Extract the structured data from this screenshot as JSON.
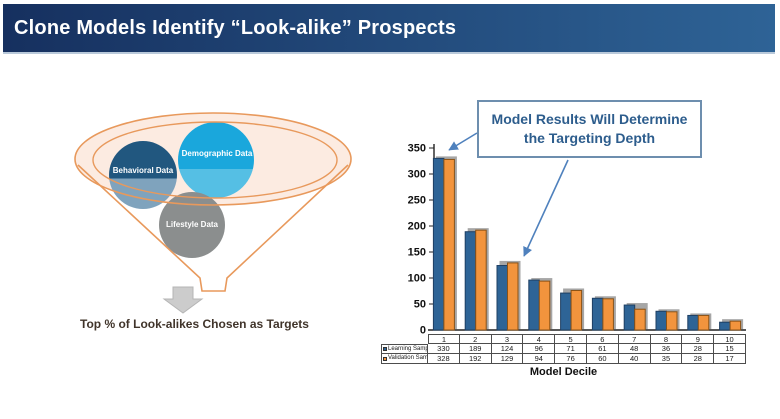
{
  "header": {
    "title": "Clone Models Identify “Look-alike” Prospects",
    "gradient_left": "#16305f",
    "gradient_right": "#2e6396"
  },
  "funnel": {
    "outline_color": "#e8995c",
    "bowl_fill": "#fcebe1",
    "circles": [
      {
        "label": "Behavioral Data",
        "color_top": "#21577f",
        "color_bottom": "#7fa3bd"
      },
      {
        "label": "Demographic Data",
        "color_top": "#1aa7dc",
        "color_bottom": "#55bfe4"
      },
      {
        "label": "Lifestyle Data",
        "color_top": "#8b8e8e",
        "color_bottom": "#8b8e8e"
      }
    ],
    "arrow_color": "#cccccc",
    "caption": "Top % of Look-alikes Chosen as Targets"
  },
  "callout": {
    "text": "Model Results Will Determine the Targeting Depth",
    "border_color": "#6d8eae",
    "text_color": "#2d5d8d",
    "arrow_color": "#4f81bd"
  },
  "chart_data": {
    "type": "bar",
    "title": "",
    "xlabel": "Model Decile",
    "ylabel": "",
    "ylim": [
      0,
      350
    ],
    "ytick_interval": 50,
    "grid": false,
    "legend_position": "table-left",
    "categories": [
      "1",
      "2",
      "3",
      "4",
      "5",
      "6",
      "7",
      "8",
      "9",
      "10"
    ],
    "series": [
      {
        "name": "Learning Sample",
        "color": "#2e6496",
        "outline": "#1e3f63",
        "values": [
          330,
          189,
          124,
          96,
          71,
          61,
          48,
          36,
          28,
          15
        ]
      },
      {
        "name": "Validation Sample",
        "color": "#f2943d",
        "outline": "#8a5216",
        "values": [
          328,
          192,
          129,
          94,
          76,
          60,
          40,
          35,
          28,
          17
        ]
      }
    ]
  }
}
